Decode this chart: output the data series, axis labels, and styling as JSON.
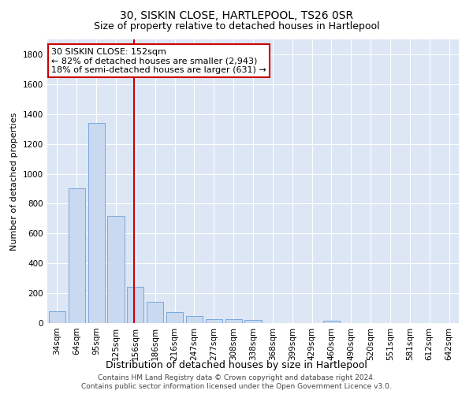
{
  "title": "30, SISKIN CLOSE, HARTLEPOOL, TS26 0SR",
  "subtitle": "Size of property relative to detached houses in Hartlepool",
  "xlabel": "Distribution of detached houses by size in Hartlepool",
  "ylabel": "Number of detached properties",
  "categories": [
    "34sqm",
    "64sqm",
    "95sqm",
    "125sqm",
    "156sqm",
    "186sqm",
    "216sqm",
    "247sqm",
    "277sqm",
    "308sqm",
    "338sqm",
    "368sqm",
    "399sqm",
    "429sqm",
    "460sqm",
    "490sqm",
    "520sqm",
    "551sqm",
    "581sqm",
    "612sqm",
    "642sqm"
  ],
  "values": [
    80,
    900,
    1340,
    720,
    245,
    140,
    75,
    45,
    25,
    25,
    20,
    0,
    0,
    0,
    15,
    0,
    0,
    0,
    0,
    0,
    0
  ],
  "bar_color": "#c9d9f0",
  "bar_edge_color": "#6a9fd8",
  "red_line_index": 4,
  "annotation_line1": "30 SISKIN CLOSE: 152sqm",
  "annotation_line2": "← 82% of detached houses are smaller (2,943)",
  "annotation_line3": "18% of semi-detached houses are larger (631) →",
  "annotation_box_color": "#ffffff",
  "annotation_box_edge": "#cc0000",
  "ylim": [
    0,
    1900
  ],
  "yticks": [
    0,
    200,
    400,
    600,
    800,
    1000,
    1200,
    1400,
    1600,
    1800
  ],
  "background_color": "#dce6f5",
  "grid_color": "#ffffff",
  "footer1": "Contains HM Land Registry data © Crown copyright and database right 2024.",
  "footer2": "Contains public sector information licensed under the Open Government Licence v3.0.",
  "title_fontsize": 10,
  "subtitle_fontsize": 9,
  "tick_fontsize": 7.5,
  "ylabel_fontsize": 8,
  "xlabel_fontsize": 9,
  "annotation_fontsize": 8
}
